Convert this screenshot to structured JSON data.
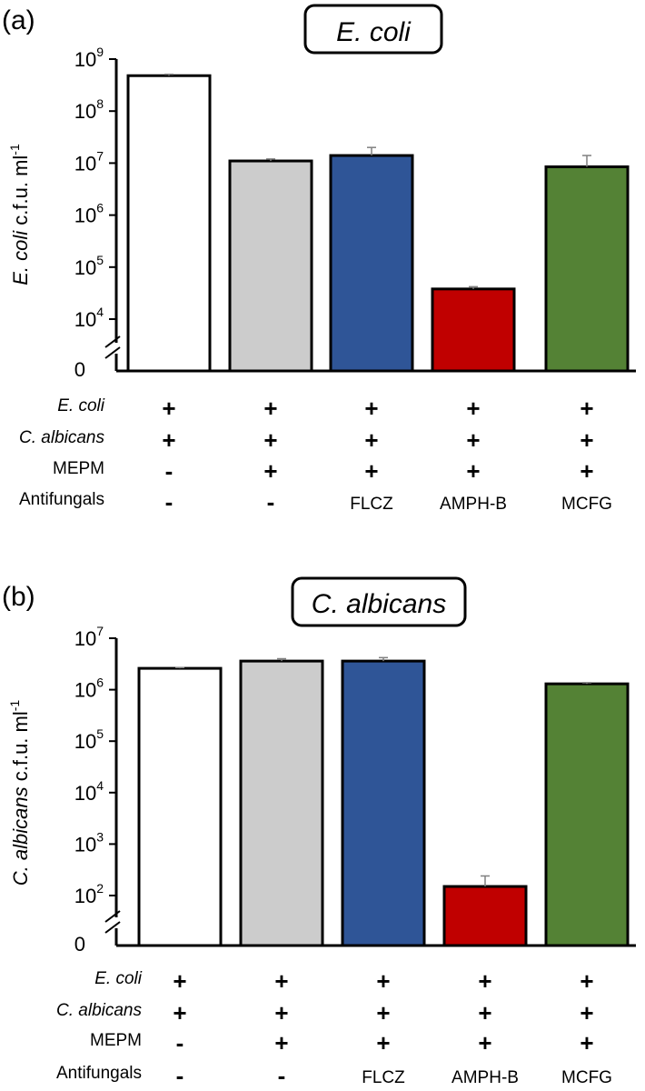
{
  "chart_data": [
    {
      "type": "bar",
      "panel_label": "(a)",
      "title": "E. coli",
      "ylabel_italic": "E. coli",
      "ylabel_rest": " c.f.u. ml",
      "ylabel_sup": "-1",
      "yscale": "log",
      "ylim": [
        1000,
        1000000000
      ],
      "axis_break": true,
      "ytick_bases": [
        {
          "value": 1000000000,
          "base": "10",
          "exp": "9"
        },
        {
          "value": 100000000,
          "base": "10",
          "exp": "8"
        },
        {
          "value": 10000000,
          "base": "10",
          "exp": "7"
        },
        {
          "value": 1000000,
          "base": "10",
          "exp": "6"
        },
        {
          "value": 100000,
          "base": "10",
          "exp": "5"
        },
        {
          "value": 10000,
          "base": "10",
          "exp": "4"
        }
      ],
      "ytick_zero": "0",
      "values": [
        480000000,
        11000000,
        14000000,
        38000,
        8500000
      ],
      "errors": [
        30000000,
        1000000,
        6000000,
        4000,
        5500000
      ],
      "colors": [
        "#ffffff",
        "#cccccc",
        "#2f5597",
        "#c00000",
        "#548235"
      ],
      "condition_rows": [
        {
          "label": "E. coli",
          "italic": true,
          "marks": [
            "+",
            "+",
            "+",
            "+",
            "+"
          ]
        },
        {
          "label": "C. albicans",
          "italic": true,
          "marks": [
            "+",
            "+",
            "+",
            "+",
            "+"
          ]
        },
        {
          "label": "MEPM",
          "italic": false,
          "marks": [
            "-",
            "+",
            "+",
            "+",
            "+"
          ]
        },
        {
          "label": "Antifungals",
          "italic": false,
          "marks": [
            "-",
            "-",
            "FLCZ",
            "AMPH-B",
            "MCFG"
          ]
        }
      ]
    },
    {
      "type": "bar",
      "panel_label": "(b)",
      "title": "C. albicans",
      "ylabel_italic": "C. albicans",
      "ylabel_rest": " c.f.u. ml",
      "ylabel_sup": "-1",
      "yscale": "log",
      "ylim": [
        10,
        10000000
      ],
      "axis_break": true,
      "ytick_bases": [
        {
          "value": 10000000,
          "base": "10",
          "exp": "7"
        },
        {
          "value": 1000000,
          "base": "10",
          "exp": "6"
        },
        {
          "value": 100000,
          "base": "10",
          "exp": "5"
        },
        {
          "value": 10000,
          "base": "10",
          "exp": "4"
        },
        {
          "value": 1000,
          "base": "10",
          "exp": "3"
        },
        {
          "value": 100,
          "base": "10",
          "exp": "2"
        }
      ],
      "ytick_zero": "0",
      "values": [
        2600000,
        3600000,
        3600000,
        150,
        1300000
      ],
      "errors": [
        100000,
        400000,
        600000,
        90,
        70000
      ],
      "colors": [
        "#ffffff",
        "#cccccc",
        "#2f5597",
        "#c00000",
        "#548235"
      ],
      "condition_rows": [
        {
          "label": "E. coli",
          "italic": true,
          "marks": [
            "+",
            "+",
            "+",
            "+",
            "+"
          ]
        },
        {
          "label": "C. albicans",
          "italic": true,
          "marks": [
            "+",
            "+",
            "+",
            "+",
            "+"
          ]
        },
        {
          "label": "MEPM",
          "italic": false,
          "marks": [
            "-",
            "+",
            "+",
            "+",
            "+"
          ]
        },
        {
          "label": "Antifungals",
          "italic": false,
          "marks": [
            "-",
            "-",
            "FLCZ",
            "AMPH-B",
            "MCFG"
          ]
        }
      ]
    }
  ]
}
